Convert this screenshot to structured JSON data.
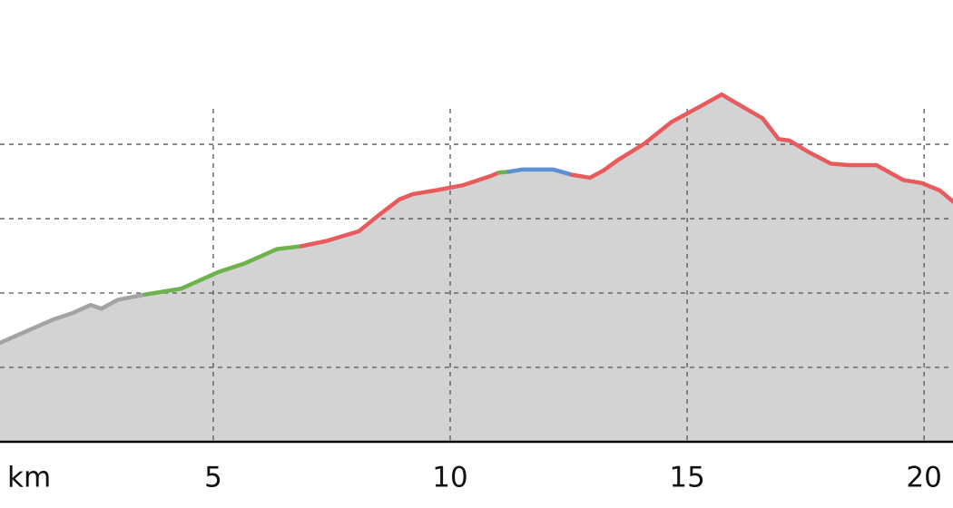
{
  "chart_data": {
    "type": "area",
    "x_label": "km",
    "xlim": [
      0.5,
      20.61
    ],
    "xticks": [
      5,
      10,
      15,
      20
    ],
    "ylim": [
      0,
      5.94
    ],
    "yticks": [
      1,
      2,
      3,
      4
    ],
    "grid": true,
    "fill_color": "#d3d3d3",
    "series": [
      {
        "color": "#a3a3a3",
        "x": [
          0.5,
          1.07,
          1.65,
          2.03,
          2.41,
          2.64,
          2.99,
          3.56
        ],
        "values": [
          1.33,
          1.49,
          1.65,
          1.73,
          1.84,
          1.79,
          1.91,
          1.98
        ]
      },
      {
        "color": "#6db24c",
        "x": [
          3.56,
          4.33,
          5.1,
          5.67,
          6.34,
          6.86
        ],
        "values": [
          1.98,
          2.06,
          2.28,
          2.4,
          2.59,
          2.63
        ]
      },
      {
        "color": "#e95a5c",
        "x": [
          6.86,
          7.39,
          8.07,
          8.54,
          8.93,
          9.21,
          9.69,
          10.27,
          10.84,
          11.03
        ],
        "values": [
          2.63,
          2.7,
          2.83,
          3.07,
          3.26,
          3.33,
          3.38,
          3.45,
          3.57,
          3.62
        ]
      },
      {
        "color": "#6db24c",
        "x": [
          11.03,
          11.23
        ],
        "values": [
          3.62,
          3.63
        ]
      },
      {
        "color": "#5b8ed3",
        "x": [
          11.23,
          11.51,
          12.18,
          12.57
        ],
        "values": [
          3.63,
          3.66,
          3.66,
          3.59
        ]
      },
      {
        "color": "#e95a5c",
        "x": [
          12.57,
          12.95,
          13.24,
          13.52,
          14.1,
          14.67,
          15.25,
          15.73,
          16.02,
          16.59,
          16.93,
          17.16,
          17.55,
          18.03,
          18.41,
          18.99,
          19.56,
          19.94,
          20.33,
          20.61
        ],
        "values": [
          3.59,
          3.55,
          3.65,
          3.78,
          4.01,
          4.3,
          4.5,
          4.67,
          4.56,
          4.35,
          4.07,
          4.05,
          3.9,
          3.74,
          3.72,
          3.72,
          3.52,
          3.48,
          3.38,
          3.23
        ]
      }
    ]
  }
}
